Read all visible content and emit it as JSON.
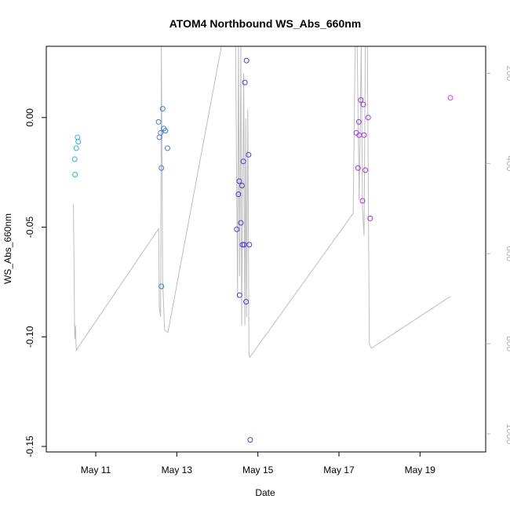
{
  "chart_data": {
    "type": "scatter",
    "title": "ATOM4 Northbound WS_Abs_660nm",
    "xlabel": "Date",
    "ylabel": "WS_Abs_660nm",
    "x_axis": {
      "unit": "days in May",
      "range": [
        9.78,
        20.62
      ],
      "ticks": [
        {
          "value": 11,
          "label": "May 11"
        },
        {
          "value": 13,
          "label": "May 13"
        },
        {
          "value": 15,
          "label": "May 15"
        },
        {
          "value": 17,
          "label": "May 17"
        },
        {
          "value": 19,
          "label": "May 19"
        }
      ]
    },
    "y_axis": {
      "range": [
        -0.1525,
        0.0325
      ],
      "ticks": [
        {
          "value": 0.0,
          "label": "0.00"
        },
        {
          "value": -0.05,
          "label": "-0.05"
        },
        {
          "value": -0.1,
          "label": "-0.10"
        },
        {
          "value": -0.15,
          "label": "-0.15"
        }
      ]
    },
    "y2_axis": {
      "range": [
        1040,
        140
      ],
      "ticks": [
        {
          "value": 200,
          "label": "200"
        },
        {
          "value": 400,
          "label": "400"
        },
        {
          "value": 600,
          "label": "600"
        },
        {
          "value": 800,
          "label": "800"
        },
        {
          "value": 1000,
          "label": "1000"
        }
      ]
    },
    "grid": false,
    "points": [
      {
        "x": 10.48,
        "y": -0.019,
        "color": "#2fb3e6"
      },
      {
        "x": 10.49,
        "y": -0.026,
        "color": "#2fb3e6"
      },
      {
        "x": 10.52,
        "y": -0.014,
        "color": "#2fb3e6"
      },
      {
        "x": 10.55,
        "y": -0.009,
        "color": "#2fb3e6"
      },
      {
        "x": 10.57,
        "y": -0.011,
        "color": "#2fb3e6"
      },
      {
        "x": 12.55,
        "y": -0.002,
        "color": "#3a7de8"
      },
      {
        "x": 12.57,
        "y": -0.009,
        "color": "#3a7de8"
      },
      {
        "x": 12.6,
        "y": -0.007,
        "color": "#3a7de8"
      },
      {
        "x": 12.62,
        "y": -0.023,
        "color": "#3a7de8"
      },
      {
        "x": 12.62,
        "y": -0.077,
        "color": "#3a7de8"
      },
      {
        "x": 12.65,
        "y": 0.004,
        "color": "#3a7de8"
      },
      {
        "x": 12.68,
        "y": -0.005,
        "color": "#3a7de8"
      },
      {
        "x": 12.72,
        "y": -0.006,
        "color": "#3a7de8"
      },
      {
        "x": 12.77,
        "y": -0.014,
        "color": "#3a7de8"
      },
      {
        "x": 14.48,
        "y": -0.051,
        "color": "#4a3be6"
      },
      {
        "x": 14.52,
        "y": -0.035,
        "color": "#4a3be6"
      },
      {
        "x": 14.54,
        "y": -0.029,
        "color": "#4a3be6"
      },
      {
        "x": 14.55,
        "y": -0.081,
        "color": "#4a3be6"
      },
      {
        "x": 14.58,
        "y": -0.048,
        "color": "#4a3be6"
      },
      {
        "x": 14.61,
        "y": -0.031,
        "color": "#4a3be6"
      },
      {
        "x": 14.62,
        "y": -0.058,
        "color": "#4a3be6"
      },
      {
        "x": 14.64,
        "y": -0.02,
        "color": "#4a3be6"
      },
      {
        "x": 14.66,
        "y": -0.058,
        "color": "#4a3be6"
      },
      {
        "x": 14.68,
        "y": 0.016,
        "color": "#4a3be6"
      },
      {
        "x": 14.71,
        "y": -0.084,
        "color": "#4a3be6"
      },
      {
        "x": 14.72,
        "y": 0.026,
        "color": "#4a3be6"
      },
      {
        "x": 14.77,
        "y": -0.017,
        "color": "#4a3be6"
      },
      {
        "x": 14.79,
        "y": -0.058,
        "color": "#4a3be6"
      },
      {
        "x": 14.81,
        "y": -0.147,
        "color": "#4a3be6"
      },
      {
        "x": 17.43,
        "y": -0.007,
        "color": "#9a3be6"
      },
      {
        "x": 17.47,
        "y": -0.023,
        "color": "#9a3be6"
      },
      {
        "x": 17.49,
        "y": -0.002,
        "color": "#9a3be6"
      },
      {
        "x": 17.5,
        "y": -0.008,
        "color": "#9a3be6"
      },
      {
        "x": 17.54,
        "y": 0.008,
        "color": "#9a3be6"
      },
      {
        "x": 17.58,
        "y": -0.038,
        "color": "#9a3be6"
      },
      {
        "x": 17.6,
        "y": 0.006,
        "color": "#9a3be6"
      },
      {
        "x": 17.62,
        "y": -0.008,
        "color": "#9a3be6"
      },
      {
        "x": 17.65,
        "y": -0.024,
        "color": "#9a3be6"
      },
      {
        "x": 17.72,
        "y": 0.0,
        "color": "#9a3be6"
      },
      {
        "x": 17.77,
        "y": -0.046,
        "color": "#9a3be6"
      },
      {
        "x": 19.75,
        "y": 0.009,
        "color": "#d83be8"
      }
    ],
    "secondary_line": {
      "color": "#bdbdbd",
      "axis": "y2",
      "points": [
        [
          10.45,
          491
        ],
        [
          10.48,
          790
        ],
        [
          10.5,
          760
        ],
        [
          10.52,
          815
        ],
        [
          10.55,
          810
        ],
        [
          12.55,
          545
        ],
        [
          12.57,
          720
        ],
        [
          12.6,
          740
        ],
        [
          12.62,
          20
        ],
        [
          12.65,
          660
        ],
        [
          12.7,
          770
        ],
        [
          12.78,
          775
        ],
        [
          14.1,
          140
        ],
        [
          14.4,
          140
        ],
        [
          14.45,
          120
        ],
        [
          14.5,
          700
        ],
        [
          14.52,
          140
        ],
        [
          14.55,
          650
        ],
        [
          14.58,
          140
        ],
        [
          14.6,
          760
        ],
        [
          14.65,
          200
        ],
        [
          14.68,
          760
        ],
        [
          14.7,
          300
        ],
        [
          14.72,
          740
        ],
        [
          14.75,
          280
        ],
        [
          14.78,
          820
        ],
        [
          14.8,
          830
        ],
        [
          17.35,
          511
        ],
        [
          17.4,
          140
        ],
        [
          17.45,
          0
        ],
        [
          17.5,
          480
        ],
        [
          17.55,
          140
        ],
        [
          17.58,
          500
        ],
        [
          17.62,
          560
        ],
        [
          17.65,
          140
        ],
        [
          17.7,
          0
        ],
        [
          17.75,
          800
        ],
        [
          17.8,
          810
        ],
        [
          19.75,
          695
        ]
      ]
    }
  }
}
